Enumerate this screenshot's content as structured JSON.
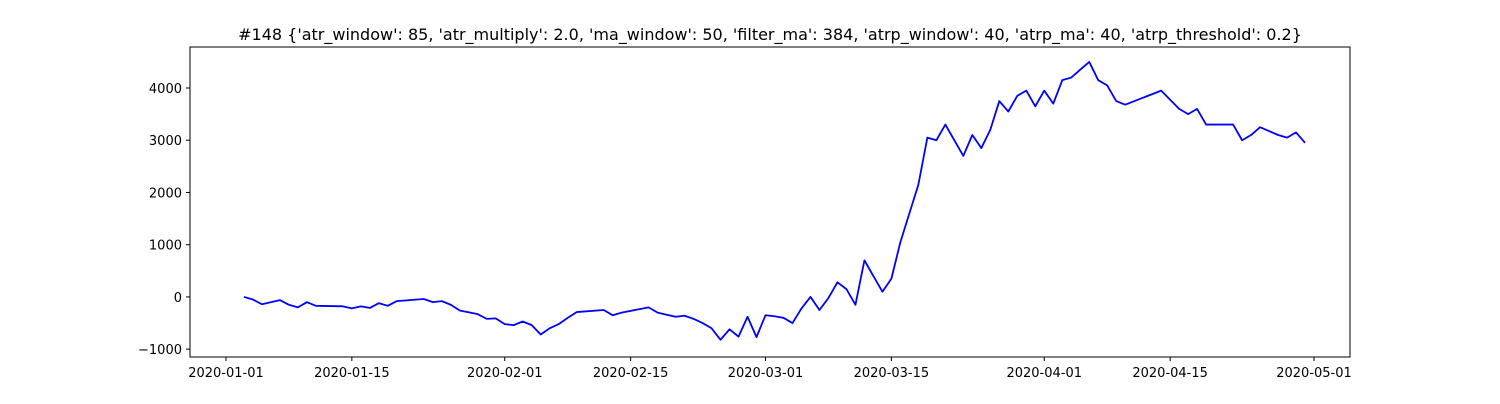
{
  "chart_data": {
    "type": "line",
    "title": "#148 {'atr_window': 85, 'atr_multiply': 2.0, 'ma_window': 50, 'filter_ma': 384, 'atrp_window': 40, 'atrp_ma': 40, 'atrp_threshold': 0.2}",
    "x": [
      "2020-01-03",
      "2020-01-04",
      "2020-01-05",
      "2020-01-07",
      "2020-01-08",
      "2020-01-09",
      "2020-01-10",
      "2020-01-11",
      "2020-01-14",
      "2020-01-15",
      "2020-01-16",
      "2020-01-17",
      "2020-01-18",
      "2020-01-19",
      "2020-01-20",
      "2020-01-23",
      "2020-01-24",
      "2020-01-25",
      "2020-01-26",
      "2020-01-27",
      "2020-01-29",
      "2020-01-30",
      "2020-01-31",
      "2020-02-01",
      "2020-02-02",
      "2020-02-03",
      "2020-02-04",
      "2020-02-05",
      "2020-02-06",
      "2020-02-07",
      "2020-02-08",
      "2020-02-09",
      "2020-02-12",
      "2020-02-13",
      "2020-02-14",
      "2020-02-17",
      "2020-02-18",
      "2020-02-19",
      "2020-02-20",
      "2020-02-21",
      "2020-02-22",
      "2020-02-23",
      "2020-02-24",
      "2020-02-25",
      "2020-02-26",
      "2020-02-27",
      "2020-02-28",
      "2020-02-29",
      "2020-03-01",
      "2020-03-02",
      "2020-03-03",
      "2020-03-04",
      "2020-03-05",
      "2020-03-06",
      "2020-03-07",
      "2020-03-08",
      "2020-03-09",
      "2020-03-10",
      "2020-03-11",
      "2020-03-12",
      "2020-03-13",
      "2020-03-14",
      "2020-03-15",
      "2020-03-16",
      "2020-03-17",
      "2020-03-18",
      "2020-03-19",
      "2020-03-20",
      "2020-03-21",
      "2020-03-23",
      "2020-03-24",
      "2020-03-25",
      "2020-03-26",
      "2020-03-27",
      "2020-03-28",
      "2020-03-29",
      "2020-03-30",
      "2020-03-31",
      "2020-04-01",
      "2020-04-02",
      "2020-04-03",
      "2020-04-04",
      "2020-04-05",
      "2020-04-06",
      "2020-04-07",
      "2020-04-08",
      "2020-04-09",
      "2020-04-10",
      "2020-04-14",
      "2020-04-16",
      "2020-04-17",
      "2020-04-18",
      "2020-04-19",
      "2020-04-22",
      "2020-04-23",
      "2020-04-24",
      "2020-04-25",
      "2020-04-27",
      "2020-04-28",
      "2020-04-29",
      "2020-04-30"
    ],
    "values": [
      0,
      -50,
      -140,
      -60,
      -150,
      -200,
      -100,
      -170,
      -180,
      -220,
      -180,
      -210,
      -120,
      -170,
      -80,
      -40,
      -100,
      -80,
      -150,
      -260,
      -330,
      -420,
      -410,
      -520,
      -540,
      -470,
      -540,
      -720,
      -600,
      -520,
      -400,
      -290,
      -250,
      -350,
      -300,
      -200,
      -300,
      -340,
      -380,
      -360,
      -420,
      -500,
      -600,
      -820,
      -620,
      -760,
      -380,
      -770,
      -350,
      -370,
      -400,
      -500,
      -220,
      0,
      -250,
      -20,
      280,
      150,
      -150,
      700,
      400,
      100,
      350,
      1050,
      1600,
      2150,
      3050,
      3000,
      3300,
      2700,
      3100,
      2850,
      3200,
      3750,
      3550,
      3850,
      3950,
      3650,
      3950,
      3700,
      4150,
      4200,
      4350,
      4500,
      4150,
      4050,
      3750,
      3680,
      3950,
      3600,
      3500,
      3600,
      3300,
      3300,
      3000,
      3100,
      3250,
      3100,
      3050,
      3150,
      2950
    ],
    "color": "#0000ff",
    "xlim": [
      "2019-12-28",
      "2020-05-05"
    ],
    "xticks": [
      "2020-01-01",
      "2020-01-15",
      "2020-02-01",
      "2020-02-15",
      "2020-03-01",
      "2020-03-15",
      "2020-04-01",
      "2020-04-15",
      "2020-05-01"
    ],
    "ylim": [
      -1150,
      4785
    ],
    "yticks": [
      {
        "value": -1000,
        "label": "−1000"
      },
      0,
      1000,
      2000,
      3000,
      4000
    ]
  }
}
